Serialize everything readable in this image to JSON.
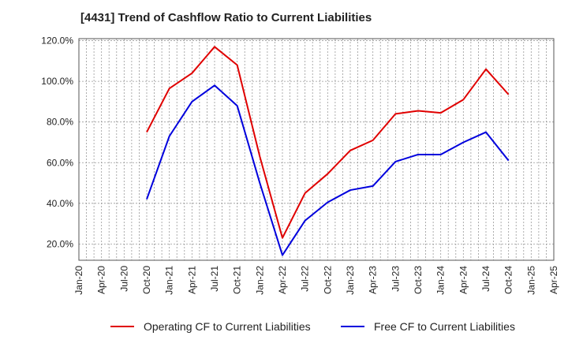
{
  "chart_data": {
    "type": "line",
    "title": "[4431]  Trend of Cashflow Ratio to Current Liabilities",
    "xlabel": "",
    "ylabel": "",
    "x_tick_labels": [
      "Jan-20",
      "Apr-20",
      "Jul-20",
      "Oct-20",
      "Jan-21",
      "Apr-21",
      "Jul-21",
      "Oct-21",
      "Jan-22",
      "Apr-22",
      "Jul-22",
      "Oct-22",
      "Jan-23",
      "Apr-23",
      "Jul-23",
      "Oct-23",
      "Jan-24",
      "Apr-24",
      "Jul-24",
      "Oct-24",
      "Jan-25",
      "Apr-25"
    ],
    "y_ticks": [
      20,
      40,
      60,
      80,
      100,
      120
    ],
    "y_tick_labels": [
      "20.0%",
      "40.0%",
      "60.0%",
      "80.0%",
      "100.0%",
      "120.0%"
    ],
    "ylim": [
      12,
      121
    ],
    "grid": true,
    "legend_position": "bottom",
    "categories": [
      "Oct-20",
      "Jan-21",
      "Apr-21",
      "Jul-21",
      "Oct-21",
      "Jan-22",
      "Apr-22",
      "Jul-22",
      "Oct-22",
      "Jan-23",
      "Apr-23",
      "Jul-23",
      "Oct-23",
      "Jan-24",
      "Apr-24",
      "Jul-24",
      "Oct-24"
    ],
    "series": [
      {
        "name": "Operating CF to Current Liabilities",
        "color": "#e00000",
        "values": [
          75.0,
          96.5,
          104.0,
          117.0,
          108.0,
          63.0,
          23.0,
          45.0,
          54.5,
          66.0,
          71.0,
          84.0,
          85.5,
          84.5,
          91.0,
          106.0,
          93.5
        ]
      },
      {
        "name": "Free CF to Current Liabilities",
        "color": "#0000dd",
        "values": [
          42.0,
          73.0,
          90.0,
          98.0,
          88.0,
          50.0,
          14.5,
          31.5,
          40.5,
          46.5,
          48.5,
          60.5,
          64.0,
          64.0,
          70.0,
          75.0,
          61.0
        ]
      }
    ]
  }
}
